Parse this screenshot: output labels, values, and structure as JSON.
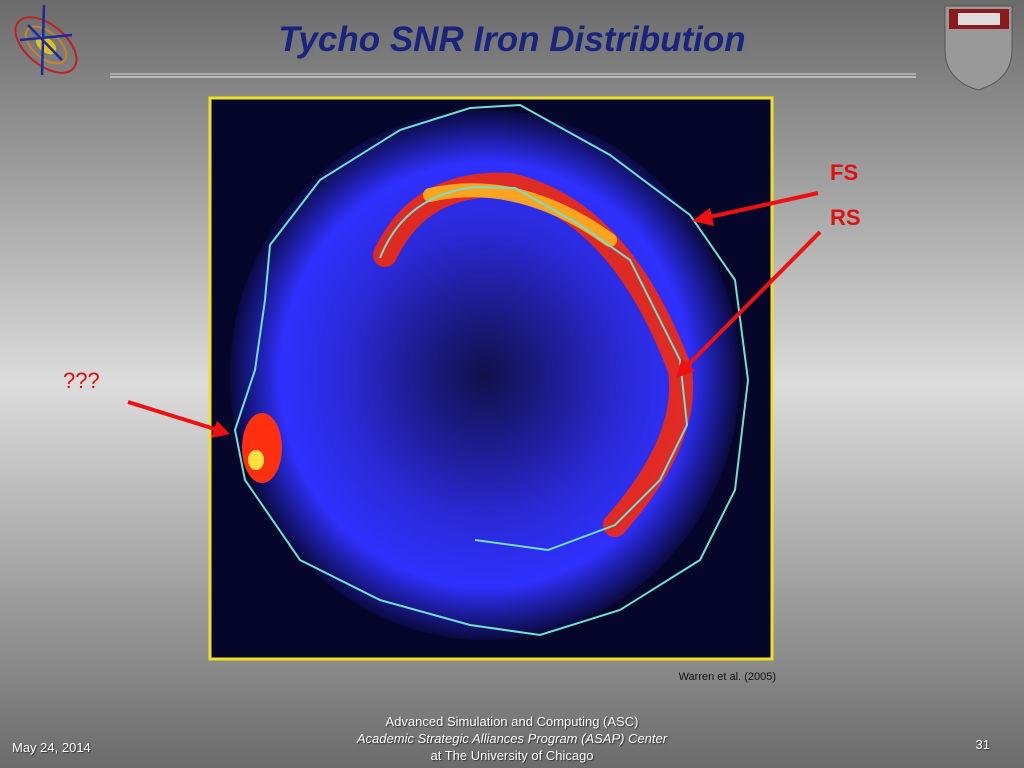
{
  "header": {
    "title": "Tycho SNR Iron Distribution"
  },
  "figure": {
    "labels": [
      "FS",
      "RS",
      "???"
    ],
    "citation": "Warren et al. (2005)"
  },
  "footer": {
    "date": "May 24, 2014",
    "center": [
      "Advanced Simulation and Computing (ASC)",
      "Academic Strategic Alliances Program (ASAP) Center",
      "at The University of Chicago"
    ],
    "page": "31"
  }
}
